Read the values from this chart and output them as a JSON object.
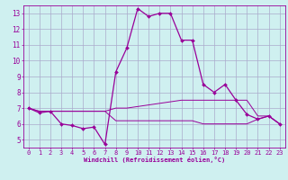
{
  "xlabel": "Windchill (Refroidissement éolien,°C)",
  "background_color": "#cff0f0",
  "grid_color": "#aaaacc",
  "line_color": "#990099",
  "xlim": [
    -0.5,
    23.5
  ],
  "ylim": [
    4.5,
    13.5
  ],
  "yticks": [
    5,
    6,
    7,
    8,
    9,
    10,
    11,
    12,
    13
  ],
  "xticks": [
    0,
    1,
    2,
    3,
    4,
    5,
    6,
    7,
    8,
    9,
    10,
    11,
    12,
    13,
    14,
    15,
    16,
    17,
    18,
    19,
    20,
    21,
    22,
    23
  ],
  "series1_x": [
    0,
    1,
    2,
    3,
    4,
    5,
    6,
    7,
    8,
    9,
    10,
    11,
    12,
    13,
    14,
    15,
    16,
    17,
    18,
    19,
    20,
    21,
    22,
    23
  ],
  "series1_y": [
    7.0,
    6.7,
    6.8,
    6.0,
    5.9,
    5.7,
    5.8,
    4.7,
    9.3,
    10.8,
    13.3,
    12.8,
    13.0,
    13.0,
    11.3,
    11.3,
    8.5,
    8.0,
    8.5,
    7.5,
    6.6,
    6.3,
    6.5,
    6.0
  ],
  "series2_x": [
    0,
    1,
    2,
    3,
    4,
    5,
    6,
    7,
    8,
    9,
    10,
    11,
    12,
    13,
    14,
    15,
    16,
    17,
    18,
    19,
    20,
    21,
    22,
    23
  ],
  "series2_y": [
    7.0,
    6.8,
    6.8,
    6.8,
    6.8,
    6.8,
    6.8,
    6.8,
    7.0,
    7.0,
    7.1,
    7.2,
    7.3,
    7.4,
    7.5,
    7.5,
    7.5,
    7.5,
    7.5,
    7.5,
    7.5,
    6.5,
    6.5,
    6.0
  ],
  "series3_x": [
    0,
    1,
    2,
    3,
    4,
    5,
    6,
    7,
    8,
    9,
    10,
    11,
    12,
    13,
    14,
    15,
    16,
    17,
    18,
    19,
    20,
    21,
    22,
    23
  ],
  "series3_y": [
    7.0,
    6.8,
    6.8,
    6.8,
    6.8,
    6.8,
    6.8,
    6.8,
    6.2,
    6.2,
    6.2,
    6.2,
    6.2,
    6.2,
    6.2,
    6.2,
    6.0,
    6.0,
    6.0,
    6.0,
    6.0,
    6.3,
    6.5,
    6.0
  ]
}
